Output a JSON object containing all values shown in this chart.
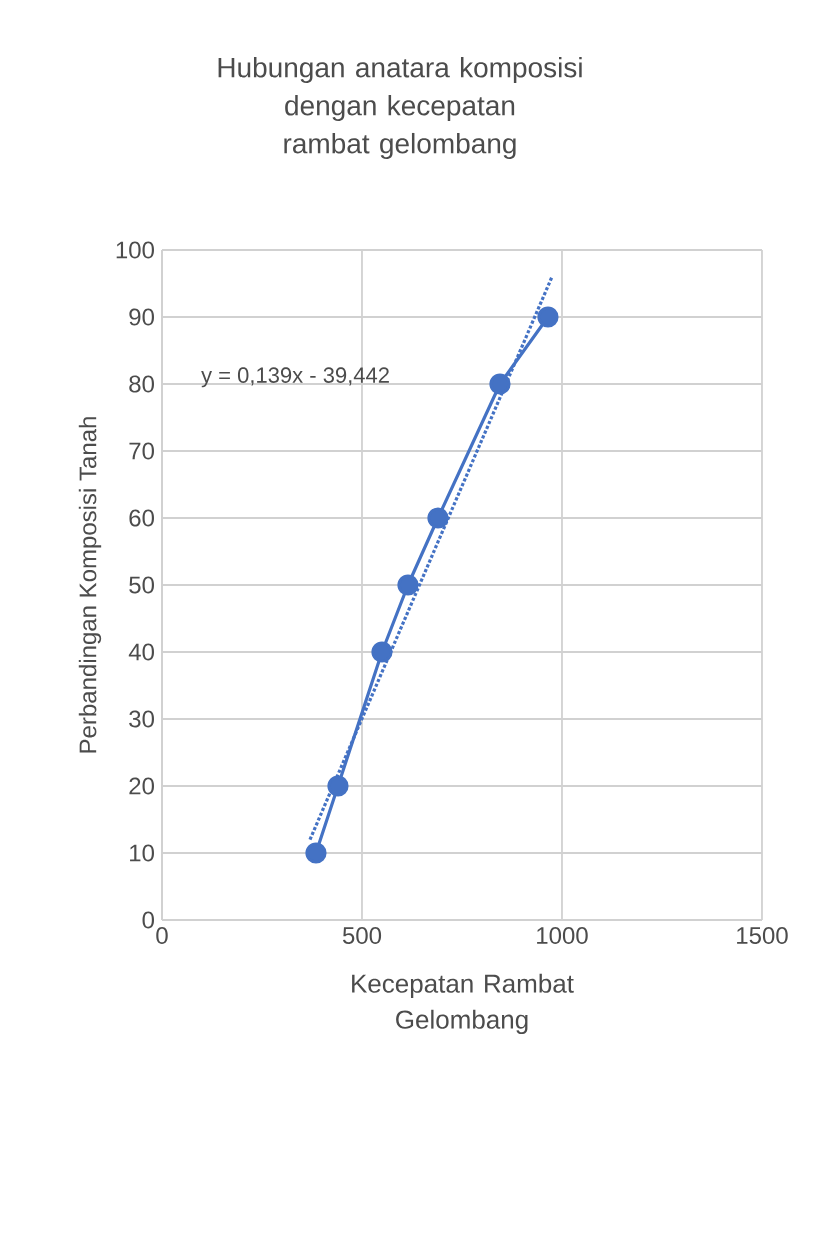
{
  "chart_data": {
    "type": "line",
    "title": "Hubungan anatara komposisi dengan kecepatan rambat gelombang",
    "xlabel": "Kecepatan Rambat Gelombang",
    "ylabel": "Perbandingan Komposisi Tanah",
    "annotations": [
      "y = 0,139x - 39,442"
    ],
    "series": [
      {
        "color": "#4472c4",
        "marker": "circle",
        "line_style": "solid",
        "x": [
          385,
          440,
          550,
          615,
          690,
          845,
          965
        ],
        "values": [
          10,
          20,
          40,
          50,
          60,
          80,
          90
        ]
      },
      {
        "type": "line",
        "color": "#4472c4",
        "marker": "none",
        "line_style": "dotted",
        "x": [
          370,
          975
        ],
        "values": [
          12,
          96
        ]
      }
    ],
    "xlim": [
      0,
      1500
    ],
    "xticks": [
      0,
      500,
      1000,
      1500
    ],
    "ylim": [
      0,
      100
    ],
    "yticks": [
      0,
      10,
      20,
      30,
      40,
      50,
      60,
      70,
      80,
      90,
      100
    ],
    "grid": true
  }
}
